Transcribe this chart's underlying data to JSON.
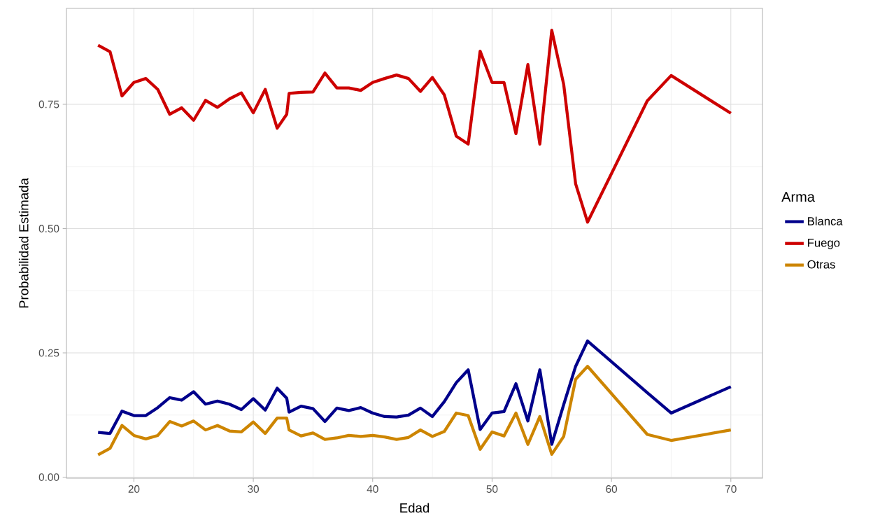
{
  "chart_data": {
    "type": "line",
    "xlabel": "Edad",
    "ylabel": "Probabilidad Estimada",
    "legend_title": "Arma",
    "x": [
      17,
      18,
      19,
      20,
      21,
      22,
      23,
      24,
      25,
      26,
      27,
      28,
      29,
      30,
      31,
      32,
      32.8,
      33,
      34,
      35,
      36,
      37,
      38,
      39,
      40,
      41,
      42,
      43,
      44,
      45,
      46,
      47,
      48,
      49,
      50,
      51,
      52,
      53,
      54,
      55,
      56,
      57,
      58,
      63,
      65,
      70
    ],
    "series": [
      {
        "name": "Blanca",
        "color": "#00008b",
        "values": [
          0.09,
          0.088,
          0.133,
          0.124,
          0.124,
          0.14,
          0.16,
          0.155,
          0.172,
          0.147,
          0.153,
          0.147,
          0.136,
          0.158,
          0.135,
          0.179,
          0.159,
          0.131,
          0.143,
          0.138,
          0.112,
          0.139,
          0.134,
          0.14,
          0.129,
          0.122,
          0.121,
          0.125,
          0.139,
          0.122,
          0.152,
          0.19,
          0.216,
          0.096,
          0.129,
          0.132,
          0.188,
          0.113,
          0.216,
          0.066,
          0.146,
          0.223,
          0.274,
          0.17,
          0.129,
          0.182
        ]
      },
      {
        "name": "Fuego",
        "color": "#cd0000",
        "values": [
          0.869,
          0.856,
          0.767,
          0.794,
          0.802,
          0.78,
          0.73,
          0.743,
          0.718,
          0.758,
          0.744,
          0.761,
          0.773,
          0.733,
          0.78,
          0.702,
          0.73,
          0.772,
          0.774,
          0.775,
          0.813,
          0.783,
          0.783,
          0.778,
          0.794,
          0.802,
          0.809,
          0.802,
          0.776,
          0.804,
          0.769,
          0.686,
          0.67,
          0.857,
          0.794,
          0.794,
          0.691,
          0.83,
          0.67,
          0.899,
          0.79,
          0.59,
          0.513,
          0.757,
          0.808,
          0.732
        ]
      },
      {
        "name": "Otras",
        "color": "#cd8500",
        "values": [
          0.045,
          0.058,
          0.104,
          0.084,
          0.077,
          0.084,
          0.112,
          0.103,
          0.113,
          0.095,
          0.104,
          0.093,
          0.091,
          0.111,
          0.088,
          0.119,
          0.119,
          0.095,
          0.083,
          0.089,
          0.076,
          0.079,
          0.084,
          0.082,
          0.084,
          0.081,
          0.076,
          0.08,
          0.095,
          0.082,
          0.092,
          0.129,
          0.124,
          0.056,
          0.091,
          0.083,
          0.129,
          0.066,
          0.122,
          0.046,
          0.082,
          0.197,
          0.223,
          0.086,
          0.074,
          0.095
        ]
      }
    ],
    "xlim": [
      14.35,
      72.65
    ],
    "ylim": [
      -0.002,
      0.943
    ],
    "xticks": [
      20,
      30,
      40,
      50,
      60,
      70
    ],
    "yticks": [
      {
        "value": 0,
        "label": "0.00"
      },
      {
        "value": 0.25,
        "label": "0.25"
      },
      {
        "value": 0.5,
        "label": "0.50"
      },
      {
        "value": 0.75,
        "label": "0.75"
      }
    ],
    "grid": true,
    "legend": "right",
    "marker": "none",
    "line_style": "solid"
  }
}
